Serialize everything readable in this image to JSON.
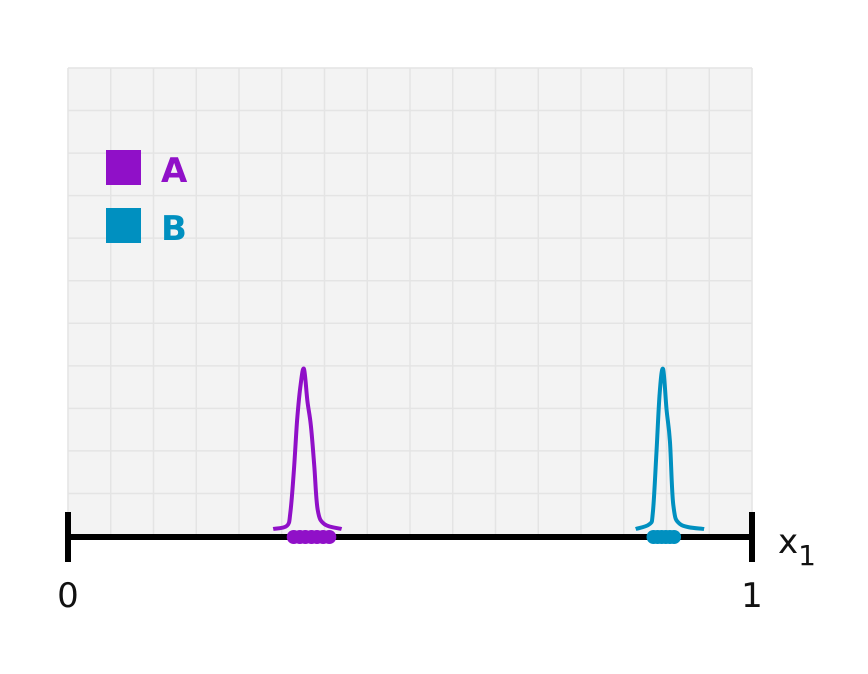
{
  "chart_data": {
    "type": "density",
    "title": "",
    "xlabel": "x",
    "xlabel_subscript": "1",
    "xlim": [
      0,
      1
    ],
    "x_ticks": [
      {
        "value": 0,
        "label": "0"
      },
      {
        "value": 1,
        "label": "1"
      }
    ],
    "grid": true,
    "legend_position": "top-left",
    "series": [
      {
        "name": "A",
        "color": "#9010c8",
        "points": [
          0.33,
          0.339,
          0.347,
          0.356,
          0.364,
          0.373,
          0.382
        ],
        "density": [
          [
            0.3,
            0.0
          ],
          [
            0.32,
            0.02
          ],
          [
            0.325,
            0.1
          ],
          [
            0.33,
            0.35
          ],
          [
            0.335,
            0.68
          ],
          [
            0.34,
            0.9
          ],
          [
            0.345,
            1.0
          ],
          [
            0.35,
            0.8
          ],
          [
            0.355,
            0.65
          ],
          [
            0.36,
            0.4
          ],
          [
            0.365,
            0.12
          ],
          [
            0.375,
            0.03
          ],
          [
            0.4,
            0.0
          ]
        ]
      },
      {
        "name": "B",
        "color": "#0090c0",
        "points": [
          0.856,
          0.862,
          0.868,
          0.874,
          0.88,
          0.886
        ],
        "density": [
          [
            0.83,
            0.0
          ],
          [
            0.85,
            0.03
          ],
          [
            0.855,
            0.1
          ],
          [
            0.86,
            0.45
          ],
          [
            0.865,
            0.85
          ],
          [
            0.87,
            1.0
          ],
          [
            0.875,
            0.75
          ],
          [
            0.88,
            0.55
          ],
          [
            0.885,
            0.15
          ],
          [
            0.895,
            0.03
          ],
          [
            0.93,
            0.0
          ]
        ]
      }
    ]
  }
}
